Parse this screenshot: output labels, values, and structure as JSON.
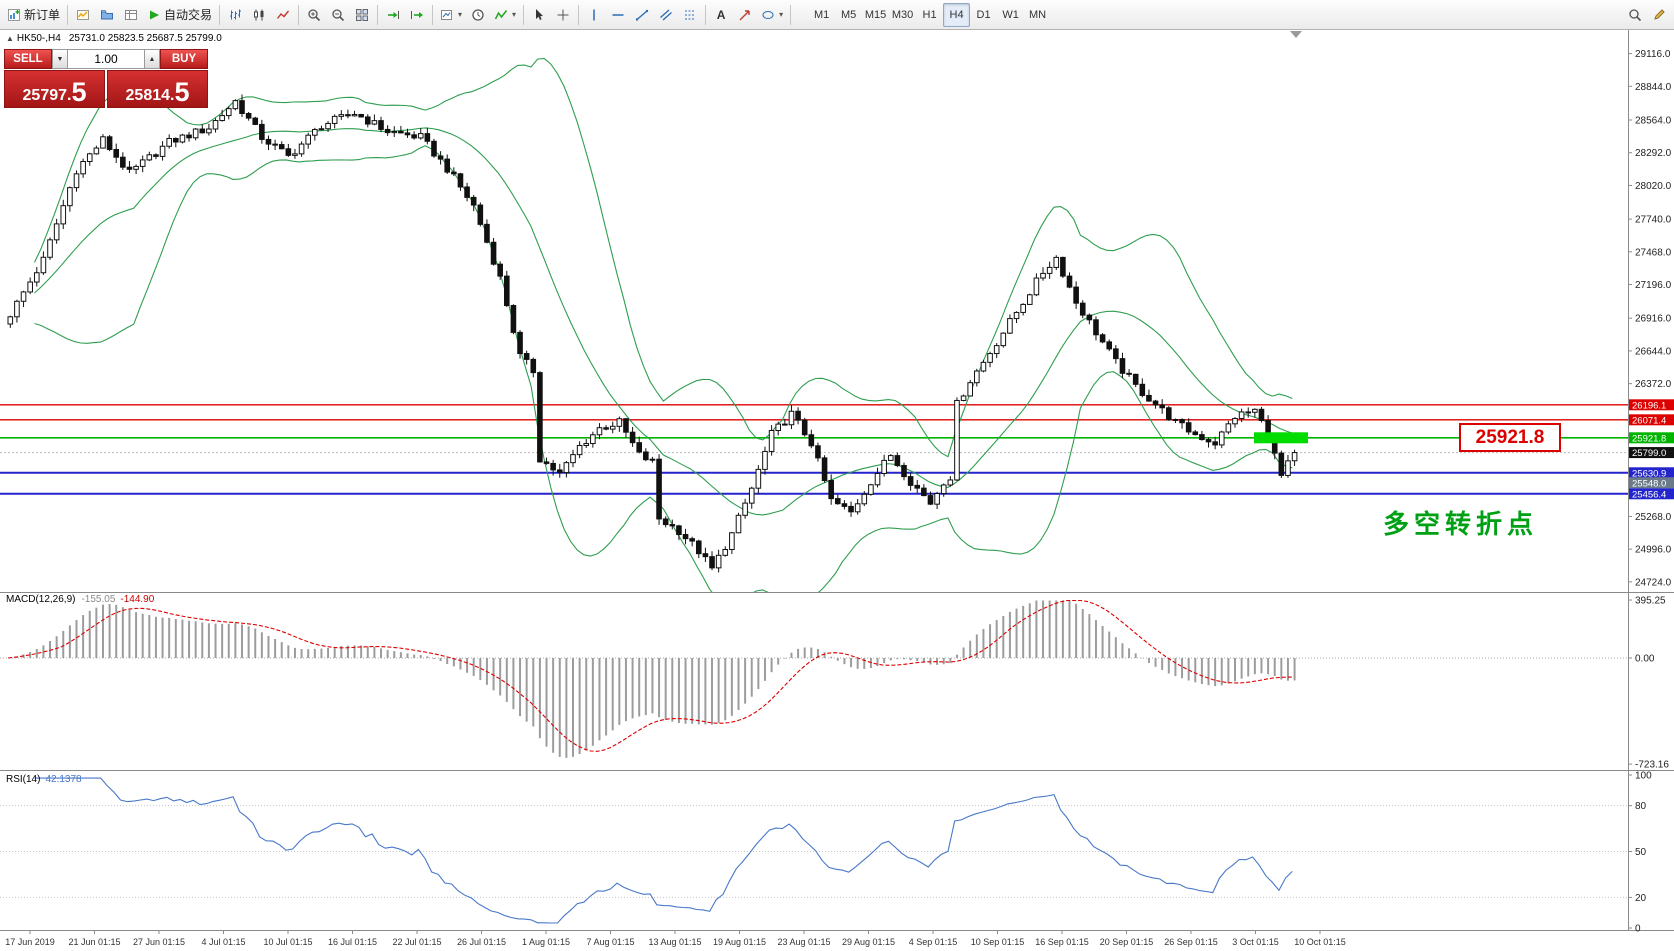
{
  "toolbar": {
    "new_order_label": "新订单",
    "auto_trading_label": "自动交易",
    "text_tool_label": "A",
    "timeframes": [
      "M1",
      "M5",
      "M15",
      "M30",
      "H1",
      "H4",
      "D1",
      "W1",
      "MN"
    ],
    "active_timeframe": "H4"
  },
  "chart_header": {
    "symbol": "HK50-,H4",
    "ohlc": "25731.0 25823.5 25687.5 25799.0"
  },
  "trade_panel": {
    "sell_label": "SELL",
    "buy_label": "BUY",
    "volume": "1.00",
    "sell_price_main": "25797.",
    "sell_price_frac": "5",
    "buy_price_main": "25814.",
    "buy_price_frac": "5"
  },
  "annotations": {
    "level_label": "25921.8",
    "turning_point": "多空转折点"
  },
  "macd_panel": {
    "name": "MACD(12,26,9)",
    "value_main": "-155.05",
    "value_signal": "-144.90",
    "axis_labels": [
      "395.25",
      "0.00",
      "-723.16"
    ]
  },
  "rsi_panel": {
    "name": "RSI(14)",
    "value": "42.1378",
    "axis_labels": [
      "100",
      "80",
      "50",
      "20",
      "0"
    ]
  },
  "price_axis_labels": [
    "29116.0",
    "28844.0",
    "28564.0",
    "28292.0",
    "28020.0",
    "27740.0",
    "27468.0",
    "27196.0",
    "26916.0",
    "26644.0",
    "26372.0",
    "25268.0",
    "24996.0",
    "24724.0"
  ],
  "price_tags": [
    {
      "text": "26196.1",
      "price": 26196.1,
      "bg": "#dd0000"
    },
    {
      "text": "26071.4",
      "price": 26071.4,
      "bg": "#dd0000"
    },
    {
      "text": "25921.8",
      "price": 25921.8,
      "bg": "#00b400"
    },
    {
      "text": "25799.0",
      "price": 25799.0,
      "bg": "#111111"
    },
    {
      "text": "25630.9",
      "price": 25630.9,
      "bg": "#2424cc"
    },
    {
      "text": "25548.0",
      "price": 25548.0,
      "bg": "#6a7a88"
    },
    {
      "text": "25456.4",
      "price": 25456.4,
      "bg": "#2424cc"
    }
  ],
  "time_axis": [
    "17 Jun 2019",
    "21 Jun 01:15",
    "27 Jun 01:15",
    "4 Jul 01:15",
    "10 Jul 01:15",
    "16 Jul 01:15",
    "22 Jul 01:15",
    "26 Jul 01:15",
    "1 Aug 01:15",
    "7 Aug 01:15",
    "13 Aug 01:15",
    "19 Aug 01:15",
    "23 Aug 01:15",
    "29 Aug 01:15",
    "4 Sep 01:15",
    "10 Sep 01:15",
    "16 Sep 01:15",
    "20 Sep 01:15",
    "26 Sep 01:15",
    "3 Oct 01:15",
    "10 Oct 01:15"
  ],
  "chart_data": {
    "type": "candlestick",
    "symbol": "HK50",
    "timeframe": "H4",
    "title": "HK50-,H4",
    "current_ohlc": {
      "open": 25731.0,
      "high": 25823.5,
      "low": 25687.5,
      "close": 25799.0
    },
    "visible_price_range": [
      24724.0,
      29116.0
    ],
    "num_candles": 195,
    "close_waypoints": [
      [
        0,
        26950
      ],
      [
        5,
        27400
      ],
      [
        10,
        28150
      ],
      [
        14,
        28400
      ],
      [
        18,
        28120
      ],
      [
        24,
        28380
      ],
      [
        30,
        28500
      ],
      [
        34,
        28720
      ],
      [
        38,
        28420
      ],
      [
        42,
        28260
      ],
      [
        47,
        28520
      ],
      [
        52,
        28620
      ],
      [
        57,
        28470
      ],
      [
        62,
        28420
      ],
      [
        66,
        28160
      ],
      [
        70,
        27850
      ],
      [
        74,
        27250
      ],
      [
        77,
        26600
      ],
      [
        79,
        26480
      ],
      [
        80,
        25750
      ],
      [
        83,
        25620
      ],
      [
        86,
        25850
      ],
      [
        89,
        26000
      ],
      [
        92,
        26050
      ],
      [
        95,
        25780
      ],
      [
        97,
        25720
      ],
      [
        98,
        25250
      ],
      [
        101,
        25150
      ],
      [
        104,
        24980
      ],
      [
        106,
        24830
      ],
      [
        109,
        25120
      ],
      [
        112,
        25500
      ],
      [
        115,
        25950
      ],
      [
        118,
        26120
      ],
      [
        121,
        25880
      ],
      [
        124,
        25400
      ],
      [
        127,
        25300
      ],
      [
        130,
        25560
      ],
      [
        133,
        25780
      ],
      [
        136,
        25560
      ],
      [
        139,
        25380
      ],
      [
        141,
        25560
      ],
      [
        142,
        25600
      ],
      [
        143,
        26200
      ],
      [
        145,
        26400
      ],
      [
        147,
        26550
      ],
      [
        150,
        26800
      ],
      [
        153,
        27050
      ],
      [
        156,
        27300
      ],
      [
        158,
        27420
      ],
      [
        161,
        27050
      ],
      [
        164,
        26800
      ],
      [
        167,
        26550
      ],
      [
        170,
        26350
      ],
      [
        173,
        26200
      ],
      [
        176,
        26050
      ],
      [
        179,
        25950
      ],
      [
        182,
        25880
      ],
      [
        185,
        26100
      ],
      [
        188,
        26150
      ],
      [
        190,
        25950
      ],
      [
        192,
        25600
      ],
      [
        194,
        25799
      ]
    ],
    "bollinger_bands": {
      "period": 20,
      "deviation": 2,
      "color": "#2f9e4f"
    },
    "horizontal_lines": [
      {
        "price": 26196.1,
        "color": "#dd0000",
        "width": 1.4
      },
      {
        "price": 26071.4,
        "color": "#dd0000",
        "width": 1.4
      },
      {
        "price": 25921.8,
        "color": "#00b400",
        "width": 1.6
      },
      {
        "price": 25630.9,
        "color": "#2424cc",
        "width": 2
      },
      {
        "price": 25456.4,
        "color": "#2424cc",
        "width": 2
      }
    ],
    "bid_line_price": 25799.0,
    "highlight_rect": {
      "price": 25921.8,
      "color": "#00dc00"
    },
    "macd": {
      "params": [
        12,
        26,
        9
      ],
      "current_main": -155.05,
      "current_signal": -144.9,
      "axis_max": 395.25,
      "axis_min": -723.16,
      "histogram_color": "#9c9c9c",
      "signal_color": "#dd0000"
    },
    "rsi": {
      "period": 14,
      "current": 42.1378,
      "levels": [
        80,
        50,
        20
      ],
      "color": "#4878c8"
    }
  }
}
